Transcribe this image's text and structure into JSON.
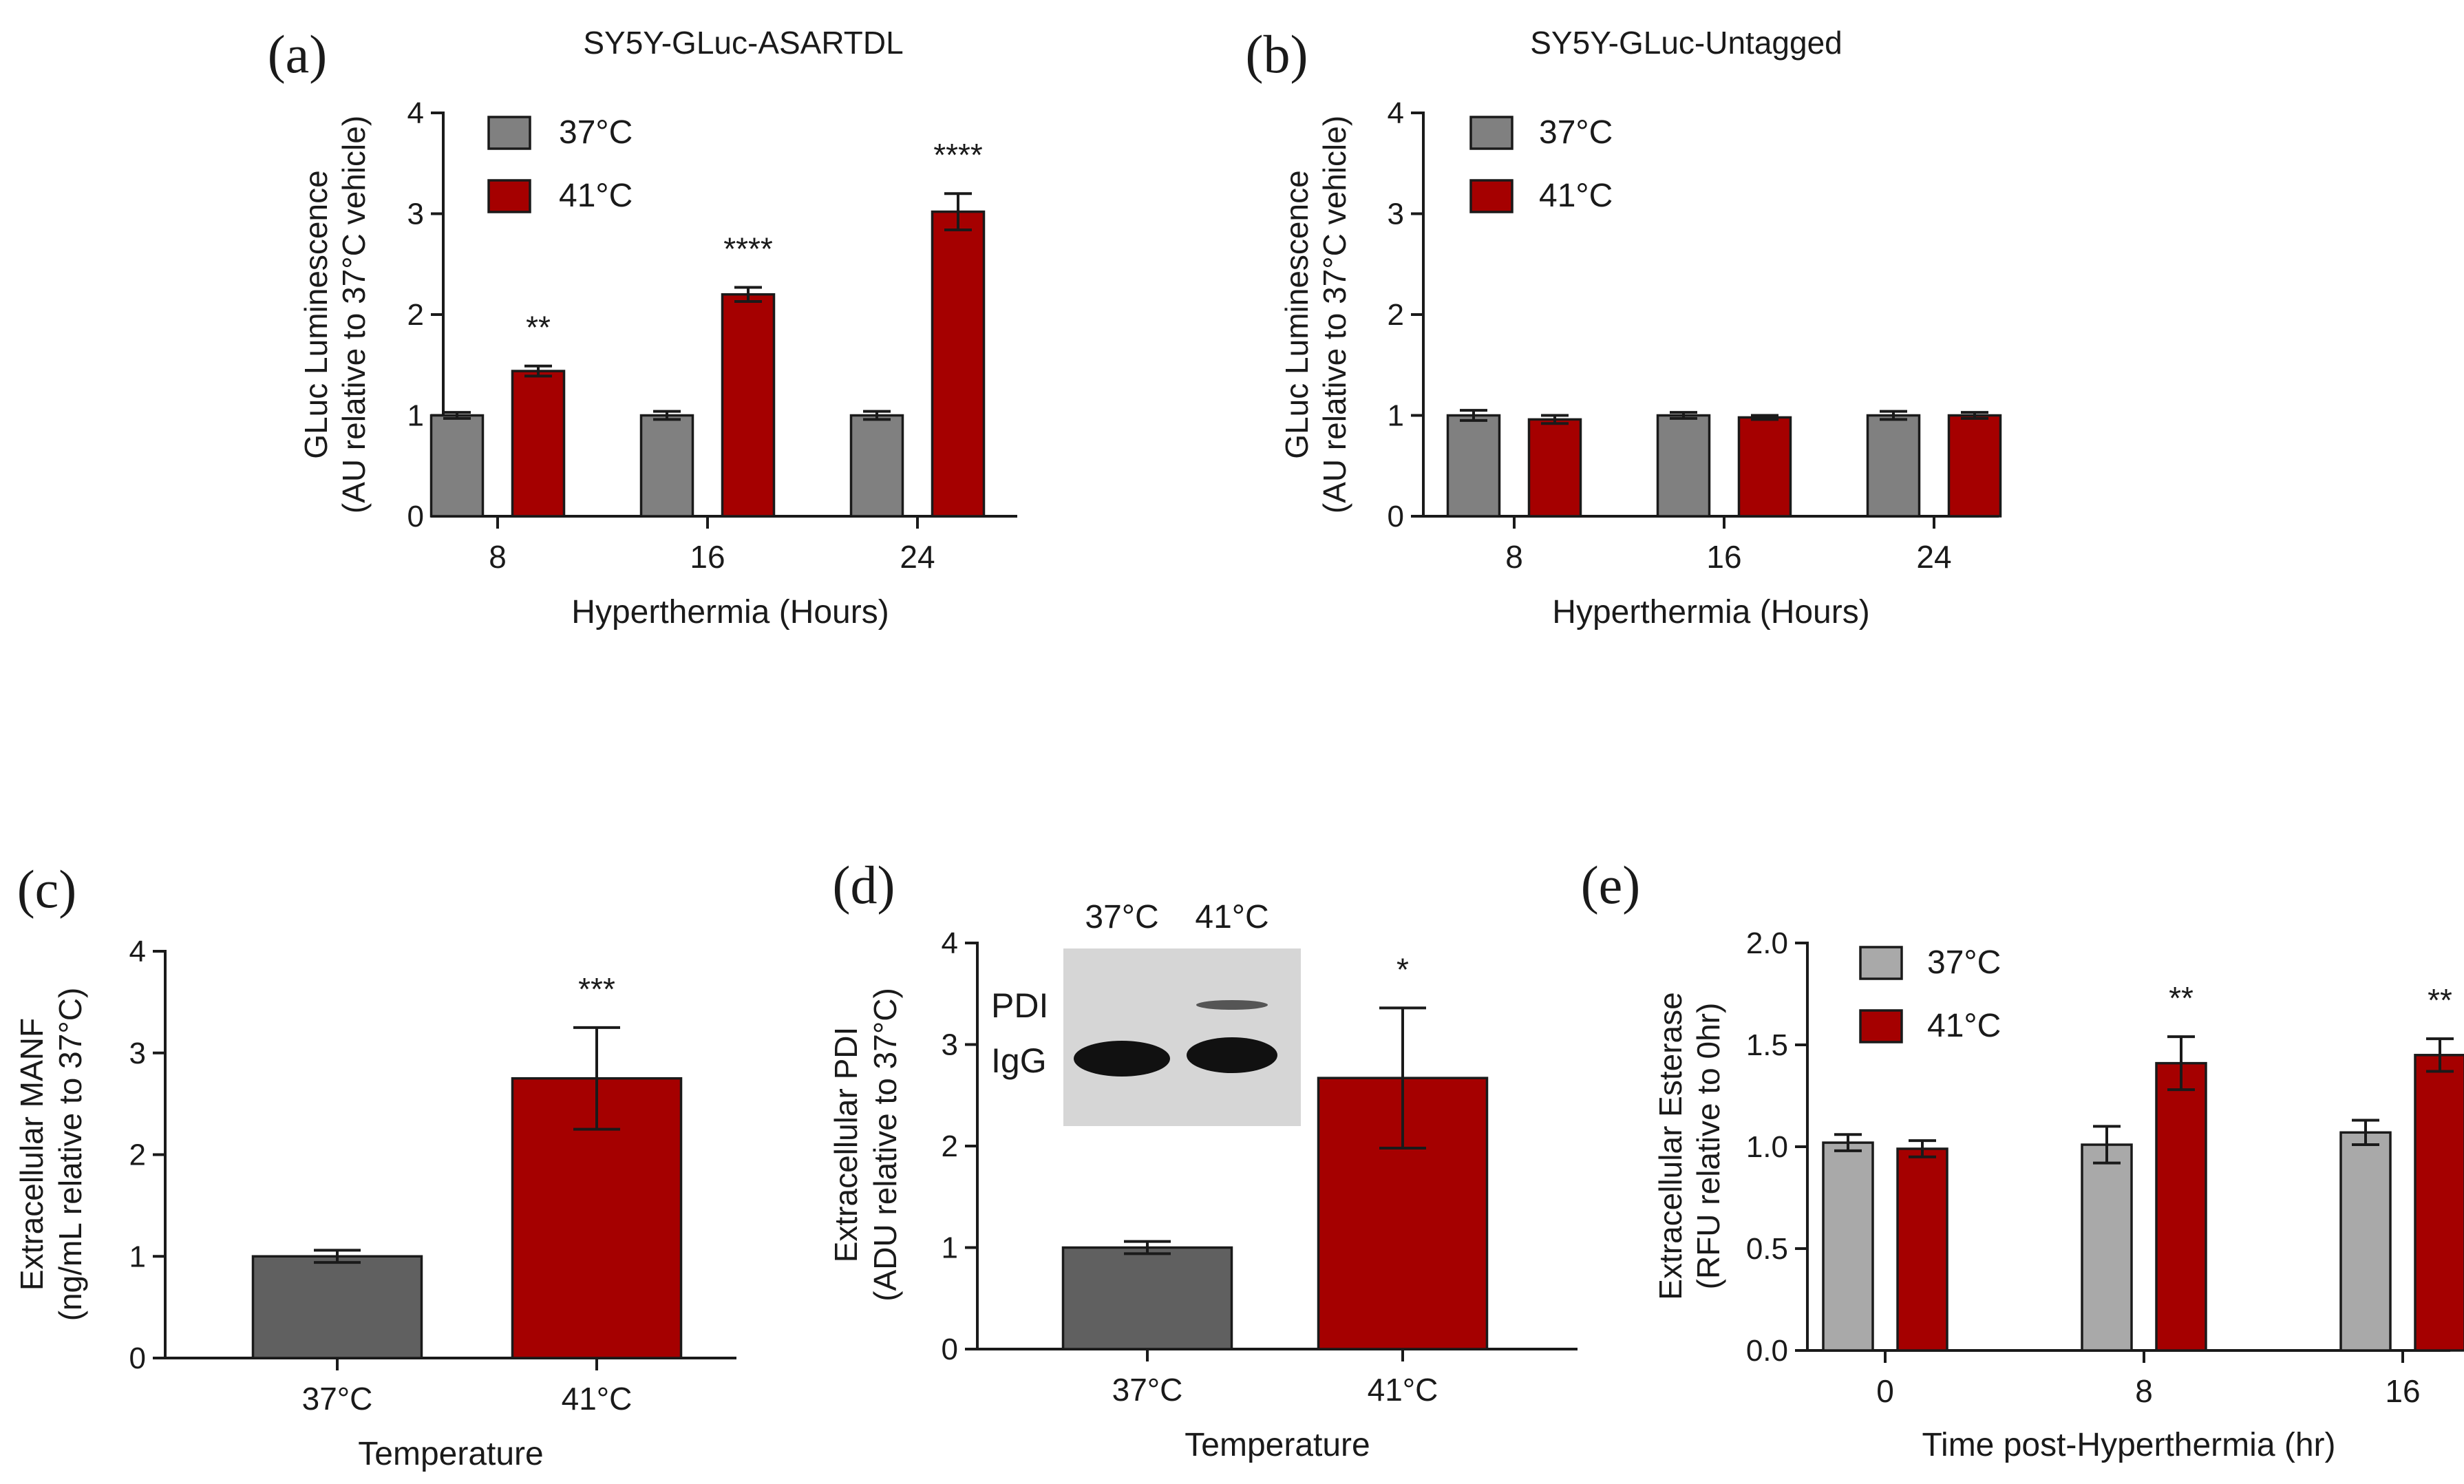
{
  "chart_data": [
    {
      "panel": "(a)",
      "type": "bar",
      "title": "SY5Y-GLuc-ASARTDL",
      "xlabel": "Hyperthermia (Hours)",
      "ylabel": [
        "GLuc Luminescence",
        "(AU relative to 37°C vehicle)"
      ],
      "categories": [
        "8",
        "16",
        "24"
      ],
      "ylim": [
        0,
        4
      ],
      "yticks": [
        "0",
        "1",
        "2",
        "3",
        "4"
      ],
      "legend_position": "top-left",
      "series": [
        {
          "name": "37°C",
          "color": "#808080",
          "values": [
            1.0,
            1.0,
            1.0
          ],
          "errors": [
            0.03,
            0.04,
            0.04
          ]
        },
        {
          "name": "41°C",
          "color": "#a50000",
          "values": [
            1.44,
            2.2,
            3.02
          ],
          "errors": [
            0.05,
            0.07,
            0.18
          ]
        }
      ],
      "annotations": [
        {
          "series": 1,
          "index": 0,
          "text": "**"
        },
        {
          "series": 1,
          "index": 1,
          "text": "****"
        },
        {
          "series": 1,
          "index": 2,
          "text": "****"
        }
      ]
    },
    {
      "panel": "(b)",
      "type": "bar",
      "title": "SY5Y-GLuc-Untagged",
      "xlabel": "Hyperthermia (Hours)",
      "ylabel": [
        "GLuc Luminescence",
        "(AU relative to 37°C vehicle)"
      ],
      "categories": [
        "8",
        "16",
        "24"
      ],
      "ylim": [
        0,
        4
      ],
      "yticks": [
        "0",
        "1",
        "2",
        "3",
        "4"
      ],
      "legend_position": "top-left",
      "series": [
        {
          "name": "37°C",
          "color": "#808080",
          "values": [
            1.0,
            1.0,
            1.0
          ],
          "errors": [
            0.05,
            0.03,
            0.04
          ]
        },
        {
          "name": "41°C",
          "color": "#a50000",
          "values": [
            0.96,
            0.98,
            1.0
          ],
          "errors": [
            0.04,
            0.02,
            0.03
          ]
        }
      ],
      "annotations": []
    },
    {
      "panel": "(c)",
      "type": "bar",
      "title": "",
      "xlabel": "Temperature",
      "ylabel": [
        "Extracellular MANF",
        "(ng/mL relative to 37°C)"
      ],
      "categories": [
        "37°C",
        "41°C"
      ],
      "ylim": [
        0,
        4
      ],
      "yticks": [
        "0",
        "1",
        "2",
        "3",
        "4"
      ],
      "series": [
        {
          "values": [
            1.0,
            2.75
          ],
          "colors": [
            "#606060",
            "#a50000"
          ],
          "errors": [
            0.06,
            0.5
          ]
        }
      ],
      "annotations": [
        {
          "series": 0,
          "index": 1,
          "text": "***"
        }
      ]
    },
    {
      "panel": "(d)",
      "type": "bar",
      "title": "",
      "xlabel": "Temperature",
      "ylabel": [
        "Extracellular PDI",
        "(ADU relative to 37°C)"
      ],
      "categories": [
        "37°C",
        "41°C"
      ],
      "ylim": [
        0,
        4
      ],
      "yticks": [
        "0",
        "1",
        "2",
        "3",
        "4"
      ],
      "series": [
        {
          "values": [
            1.0,
            2.67
          ],
          "colors": [
            "#606060",
            "#a50000"
          ],
          "errors": [
            0.06,
            0.69
          ]
        }
      ],
      "annotations": [
        {
          "series": 0,
          "index": 1,
          "text": "*"
        }
      ],
      "inset_blot": {
        "lane_labels": [
          "37°C",
          "41°C"
        ],
        "band_labels": [
          "PDI",
          "IgG"
        ]
      }
    },
    {
      "panel": "(e)",
      "type": "bar",
      "title": "",
      "xlabel": "Time post-Hyperthermia (hr)",
      "ylabel": [
        "Extracellular Esterase",
        "(RFU relative to 0hr)"
      ],
      "categories": [
        "0",
        "8",
        "16"
      ],
      "ylim": [
        0,
        2.0
      ],
      "yticks": [
        "0.0",
        "0.5",
        "1.0",
        "1.5",
        "2.0"
      ],
      "legend_position": "top-left",
      "series": [
        {
          "name": "37°C",
          "color": "#a9a9a9",
          "values": [
            1.02,
            1.01,
            1.07
          ],
          "errors": [
            0.04,
            0.09,
            0.06
          ]
        },
        {
          "name": "41°C",
          "color": "#a50000",
          "values": [
            0.99,
            1.41,
            1.45
          ],
          "errors": [
            0.04,
            0.13,
            0.08
          ]
        }
      ],
      "annotations": [
        {
          "series": 1,
          "index": 1,
          "text": "**"
        },
        {
          "series": 1,
          "index": 2,
          "text": "**"
        }
      ]
    }
  ]
}
